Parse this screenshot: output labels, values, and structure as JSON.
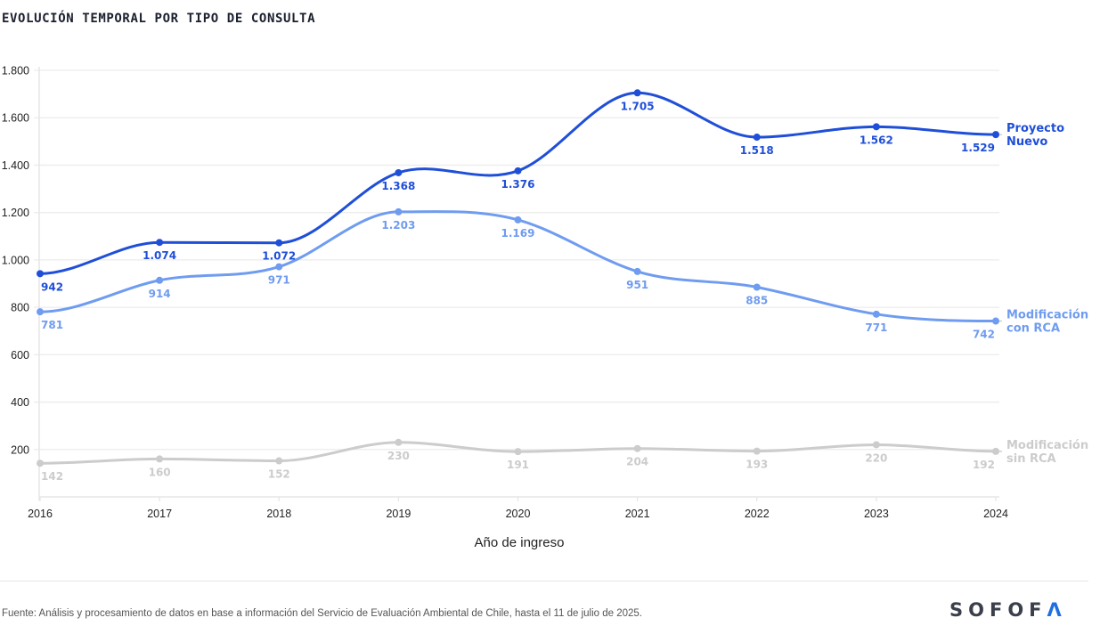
{
  "header": {
    "title": "EVOLUCIÓN TEMPORAL POR TIPO DE CONSULTA"
  },
  "chart_data": {
    "type": "line",
    "title": "EVOLUCIÓN TEMPORAL POR TIPO DE CONSULTA",
    "xlabel": "Año de ingreso",
    "ylabel": "",
    "x": [
      "2016",
      "2017",
      "2018",
      "2019",
      "2020",
      "2021",
      "2022",
      "2023",
      "2024"
    ],
    "ylim": [
      0,
      1800
    ],
    "yticks": [
      200,
      400,
      600,
      800,
      1000,
      1200,
      1400,
      1600,
      1800
    ],
    "ytick_labels": [
      "200",
      "400",
      "600",
      "800",
      "1.000",
      "1.200",
      "1.400",
      "1.600",
      "1.800"
    ],
    "grid": true,
    "legend": "inline-right",
    "series": [
      {
        "name": "Proyecto Nuevo",
        "name_lines": [
          "Proyecto",
          "Nuevo"
        ],
        "color": "#1f4fd8",
        "values": [
          942,
          1074,
          1072,
          1368,
          1376,
          1705,
          1518,
          1562,
          1529
        ],
        "labels": [
          "942",
          "1.074",
          "1.072",
          "1.368",
          "1.376",
          "1.705",
          "1.518",
          "1.562",
          "1.529"
        ]
      },
      {
        "name": "Modificación con RCA",
        "name_lines": [
          "Modificación",
          "con RCA"
        ],
        "color": "#6f9cf0",
        "values": [
          781,
          914,
          971,
          1203,
          1169,
          951,
          885,
          771,
          742
        ],
        "labels": [
          "781",
          "914",
          "971",
          "1.203",
          "1.169",
          "951",
          "885",
          "771",
          "742"
        ]
      },
      {
        "name": "Modificación sin RCA",
        "name_lines": [
          "Modificación",
          "sin RCA"
        ],
        "color": "#cccccc",
        "values": [
          142,
          160,
          152,
          230,
          191,
          204,
          193,
          220,
          192
        ],
        "labels": [
          "142",
          "160",
          "152",
          "230",
          "191",
          "204",
          "193",
          "220",
          "192"
        ]
      }
    ]
  },
  "footer": {
    "source": "Fuente: Análisis y procesamiento de datos en base a información del Servicio de Evaluación Ambiental de Chile, hasta el 11 de julio de 2025.",
    "logo_main": "SOFOF",
    "logo_accent": "Λ"
  }
}
